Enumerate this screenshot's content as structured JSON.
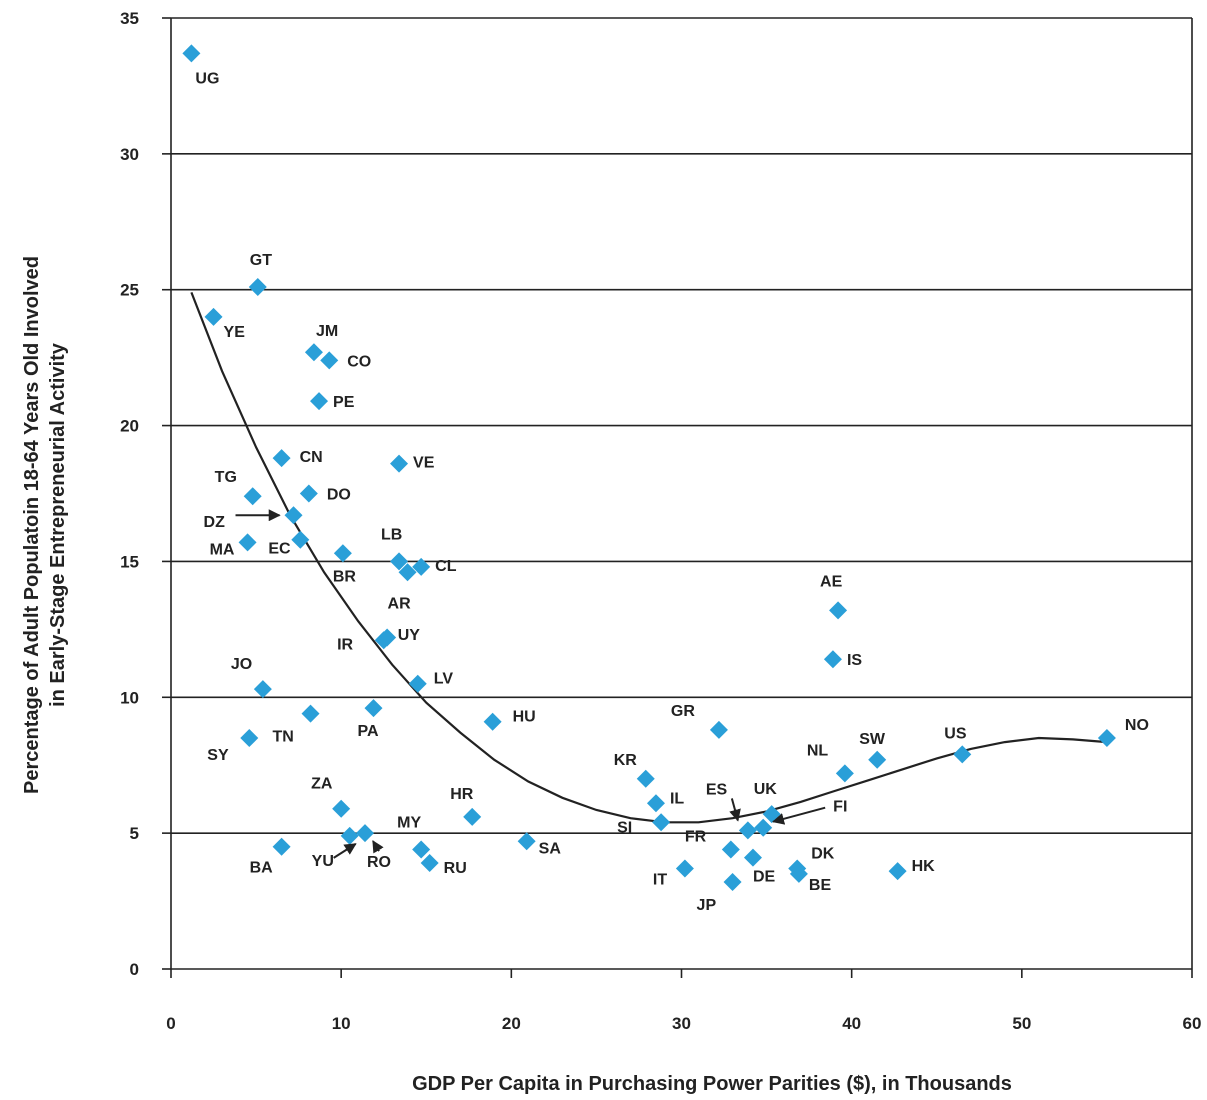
{
  "chart_data": {
    "type": "scatter",
    "xlabel": "GDP Per Capita in Purchasing Power Parities ($), in Thousands",
    "ylabel_line1": "Percentage of Adult Populatoin 18-64 Years Old Involved",
    "ylabel_line2": "in Early-Stage Entrepreneurial Activity",
    "xlim": [
      0,
      60
    ],
    "ylim": [
      0,
      35
    ],
    "xticks": [
      0,
      10,
      20,
      30,
      40,
      50,
      60
    ],
    "yticks": [
      0,
      5,
      10,
      15,
      20,
      25,
      30,
      35
    ],
    "grid": "horizontal",
    "marker_color": "#2a9fd8",
    "trend_color": "#222222",
    "points": [
      {
        "label": "UG",
        "x": 1.2,
        "y": 33.7
      },
      {
        "label": "GT",
        "x": 5.1,
        "y": 25.1
      },
      {
        "label": "YE",
        "x": 2.5,
        "y": 24.0
      },
      {
        "label": "JM",
        "x": 8.4,
        "y": 22.7
      },
      {
        "label": "CO",
        "x": 9.3,
        "y": 22.4
      },
      {
        "label": "PE",
        "x": 8.7,
        "y": 20.9
      },
      {
        "label": "CN",
        "x": 6.5,
        "y": 18.8
      },
      {
        "label": "VE",
        "x": 13.4,
        "y": 18.6
      },
      {
        "label": "TG",
        "x": 4.8,
        "y": 17.4
      },
      {
        "label": "DO",
        "x": 8.1,
        "y": 17.5
      },
      {
        "label": "DZ",
        "x": 7.2,
        "y": 16.7
      },
      {
        "label": "MA",
        "x": 4.5,
        "y": 15.7
      },
      {
        "label": "EC",
        "x": 7.6,
        "y": 15.8
      },
      {
        "label": "BR",
        "x": 10.1,
        "y": 15.3
      },
      {
        "label": "LB",
        "x": 13.4,
        "y": 15.0
      },
      {
        "label": "CL",
        "x": 14.7,
        "y": 14.8
      },
      {
        "label": "AR",
        "x": 13.9,
        "y": 14.6
      },
      {
        "label": "AE",
        "x": 39.2,
        "y": 13.2
      },
      {
        "label": "UY",
        "x": 12.5,
        "y": 12.1
      },
      {
        "label": "IR",
        "x": 12.7,
        "y": 12.2
      },
      {
        "label": "IS",
        "x": 38.9,
        "y": 11.4
      },
      {
        "label": "JO",
        "x": 5.4,
        "y": 10.3
      },
      {
        "label": "LV",
        "x": 14.5,
        "y": 10.5
      },
      {
        "label": "TN",
        "x": 8.2,
        "y": 9.4
      },
      {
        "label": "PA",
        "x": 11.9,
        "y": 9.6
      },
      {
        "label": "HU",
        "x": 18.9,
        "y": 9.1
      },
      {
        "label": "GR",
        "x": 32.2,
        "y": 8.8
      },
      {
        "label": "SY",
        "x": 4.6,
        "y": 8.5
      },
      {
        "label": "NO",
        "x": 55.0,
        "y": 8.5
      },
      {
        "label": "US",
        "x": 46.5,
        "y": 7.9
      },
      {
        "label": "SW",
        "x": 41.5,
        "y": 7.7
      },
      {
        "label": "NL",
        "x": 39.6,
        "y": 7.2
      },
      {
        "label": "KR",
        "x": 27.9,
        "y": 7.0
      },
      {
        "label": "IL",
        "x": 28.5,
        "y": 6.1
      },
      {
        "label": "ZA",
        "x": 10.0,
        "y": 5.9
      },
      {
        "label": "HR",
        "x": 17.7,
        "y": 5.6
      },
      {
        "label": "UK",
        "x": 35.3,
        "y": 5.7
      },
      {
        "label": "SI",
        "x": 28.8,
        "y": 5.4
      },
      {
        "label": "ES",
        "x": 33.9,
        "y": 5.1
      },
      {
        "label": "FI",
        "x": 34.8,
        "y": 5.2
      },
      {
        "label": "YU",
        "x": 10.5,
        "y": 4.9
      },
      {
        "label": "RO",
        "x": 11.4,
        "y": 5.0
      },
      {
        "label": "SA",
        "x": 20.9,
        "y": 4.7
      },
      {
        "label": "BA",
        "x": 6.5,
        "y": 4.5
      },
      {
        "label": "MY",
        "x": 14.7,
        "y": 4.4
      },
      {
        "label": "FR",
        "x": 32.9,
        "y": 4.4
      },
      {
        "label": "DE",
        "x": 34.2,
        "y": 4.1
      },
      {
        "label": "RU",
        "x": 15.2,
        "y": 3.9
      },
      {
        "label": "IT",
        "x": 30.2,
        "y": 3.7
      },
      {
        "label": "DK",
        "x": 36.8,
        "y": 3.7
      },
      {
        "label": "BE",
        "x": 36.9,
        "y": 3.5
      },
      {
        "label": "HK",
        "x": 42.7,
        "y": 3.6
      },
      {
        "label": "JP",
        "x": 33.0,
        "y": 3.2
      }
    ],
    "trendline": [
      {
        "x": 1.2,
        "y": 24.9
      },
      {
        "x": 3,
        "y": 22.0
      },
      {
        "x": 5,
        "y": 19.2
      },
      {
        "x": 7,
        "y": 16.7
      },
      {
        "x": 9,
        "y": 14.6
      },
      {
        "x": 11,
        "y": 12.8
      },
      {
        "x": 13,
        "y": 11.2
      },
      {
        "x": 15,
        "y": 9.8
      },
      {
        "x": 17,
        "y": 8.7
      },
      {
        "x": 19,
        "y": 7.7
      },
      {
        "x": 21,
        "y": 6.9
      },
      {
        "x": 23,
        "y": 6.3
      },
      {
        "x": 25,
        "y": 5.85
      },
      {
        "x": 27,
        "y": 5.55
      },
      {
        "x": 29,
        "y": 5.4
      },
      {
        "x": 31,
        "y": 5.4
      },
      {
        "x": 33,
        "y": 5.55
      },
      {
        "x": 35,
        "y": 5.8
      },
      {
        "x": 37,
        "y": 6.15
      },
      {
        "x": 39,
        "y": 6.55
      },
      {
        "x": 41,
        "y": 6.95
      },
      {
        "x": 43,
        "y": 7.35
      },
      {
        "x": 45,
        "y": 7.75
      },
      {
        "x": 47,
        "y": 8.1
      },
      {
        "x": 49,
        "y": 8.35
      },
      {
        "x": 51,
        "y": 8.5
      },
      {
        "x": 53,
        "y": 8.45
      },
      {
        "x": 55,
        "y": 8.35
      }
    ]
  }
}
